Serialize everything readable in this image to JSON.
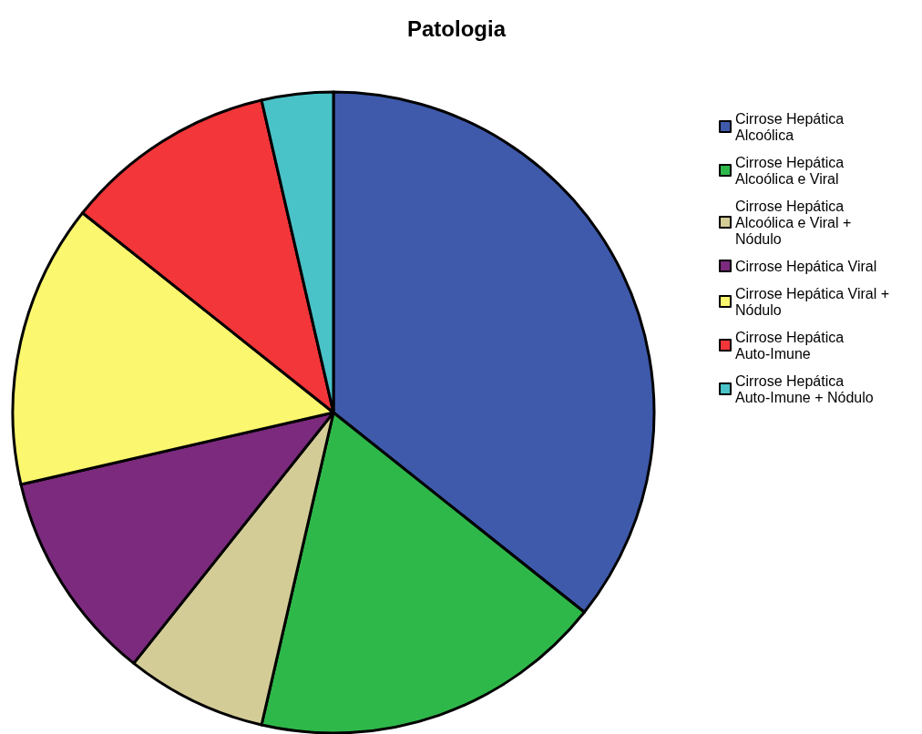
{
  "chart_data": {
    "type": "pie",
    "title": "Patologia",
    "categories": [
      "Cirrose Hepática Alcoólica",
      "Cirrose Hepática Alcoólica e Viral",
      "Cirrose Hepática Alcoólica e Viral + Nódulo",
      "Cirrose Hepática Viral",
      "Cirrose Hepática Viral + Nódulo",
      "Cirrose Hepática Auto-Imune",
      "Cirrose Hepática Auto-Imune + Nódulo"
    ],
    "values": [
      35.7,
      17.9,
      7.1,
      10.7,
      14.3,
      10.7,
      3.6
    ],
    "colors": [
      "#3f5aab",
      "#2fb84a",
      "#d4cc97",
      "#7b2a7d",
      "#fbf76f",
      "#f2363a",
      "#4ac3c8"
    ],
    "legend": "top right"
  }
}
